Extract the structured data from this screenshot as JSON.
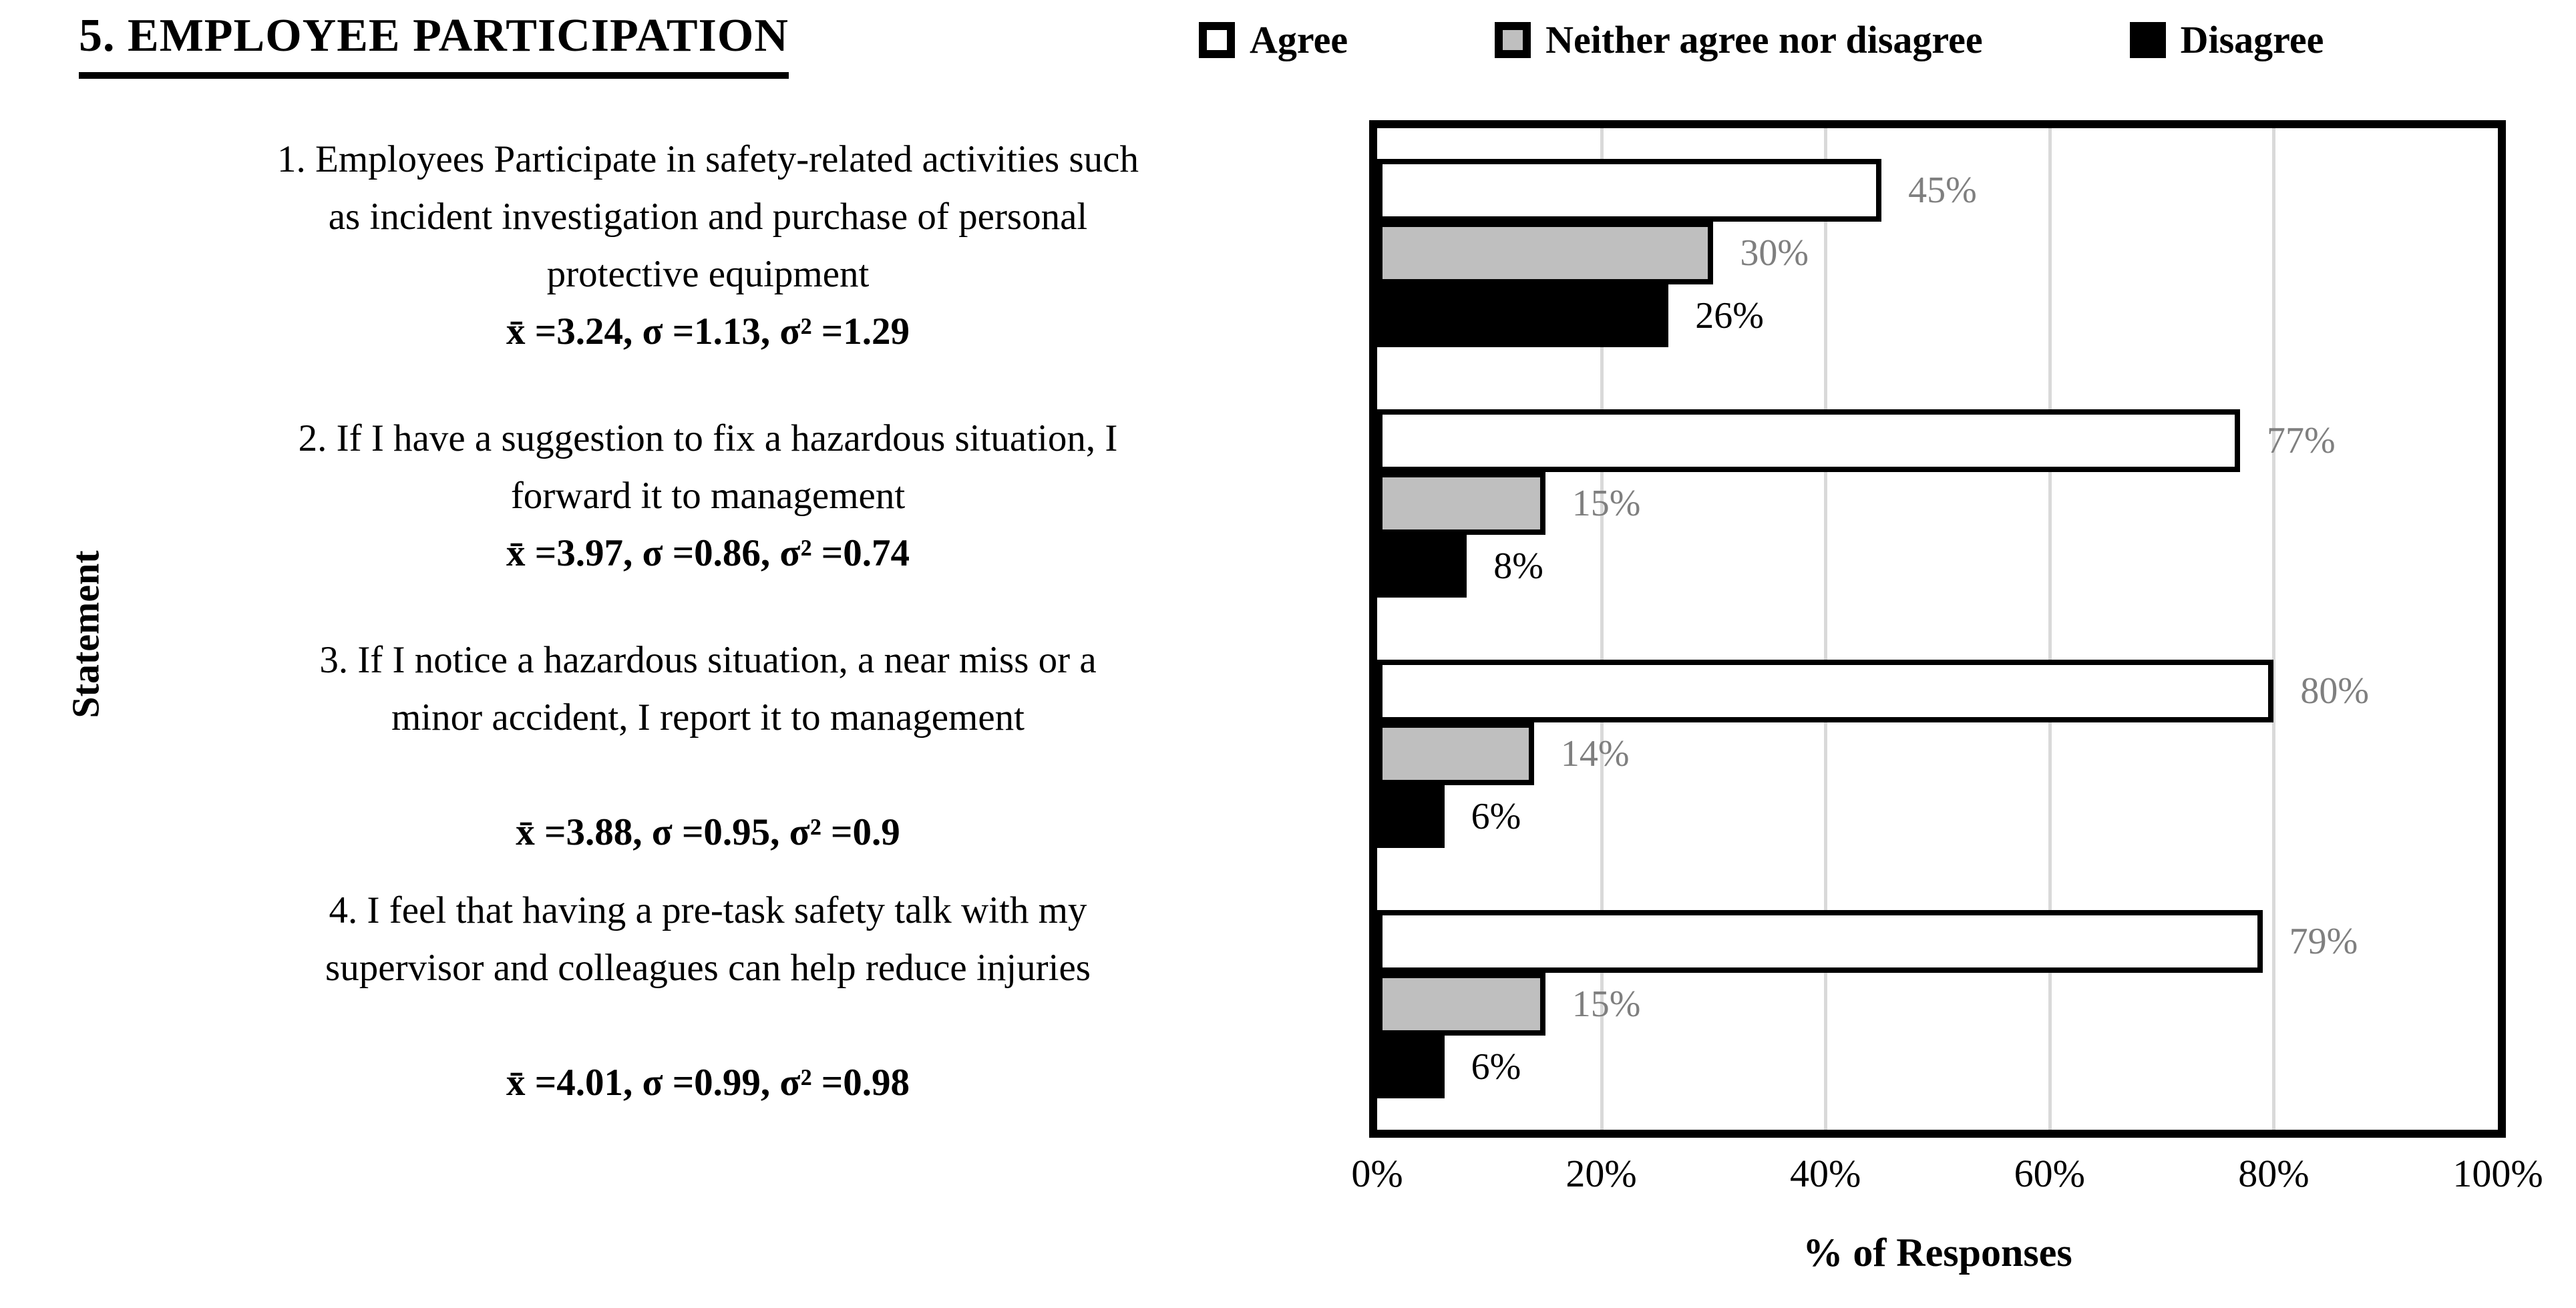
{
  "title": "5. EMPLOYEE PARTICIPATION",
  "legend": [
    {
      "label": "Agree",
      "color": "#FFFFFF"
    },
    {
      "label": "Neither agree nor disagree",
      "color": "#BFBFBF"
    },
    {
      "label": "Disagree",
      "color": "#000000"
    }
  ],
  "y_axis_title": "Statement",
  "x_axis_title": "% of Responses",
  "statements": [
    {
      "lines": [
        "1. Employees Participate in safety-related activities such",
        "as incident investigation and purchase of personal",
        "protective equipment"
      ],
      "stats": "x̄ =3.24, σ =1.13, σ² =1.29"
    },
    {
      "lines": [
        "2. If I have a suggestion to fix a hazardous situation, I",
        "forward it to management"
      ],
      "stats": "x̄ =3.97, σ =0.86, σ² =0.74"
    },
    {
      "lines": [
        "3. If I notice a hazardous situation, a near miss or a",
        "minor accident, I report it to management"
      ],
      "stats": "x̄ =3.88, σ =0.95, σ² =0.9"
    },
    {
      "lines": [
        "4. I feel that having a pre-task safety talk with my",
        "supervisor and colleagues can help reduce injuries"
      ],
      "stats": "x̄ =4.01, σ =0.99, σ² =0.98"
    }
  ],
  "chart_data": {
    "type": "bar",
    "orientation": "horizontal",
    "title": "5. EMPLOYEE PARTICIPATION",
    "xlabel": "% of Responses",
    "ylabel": "Statement",
    "xlim": [
      0,
      100
    ],
    "x_ticks": [
      "0%",
      "20%",
      "40%",
      "60%",
      "80%",
      "100%"
    ],
    "gridlines": [
      20,
      40,
      60,
      80,
      100
    ],
    "grid": "vertical",
    "legend_position": "top",
    "categories": [
      "1. Employees Participate in safety-related activities such as incident investigation and purchase of personal protective equipment",
      "2. If I have a suggestion to fix a hazardous situation, I forward it to management",
      "3. If I notice a hazardous situation, a near miss or a minor accident, I report it to management",
      "4. I feel that having a pre-task safety talk with my supervisor and colleagues can help reduce injuries"
    ],
    "series": [
      {
        "name": "Agree",
        "values": [
          45,
          77,
          80,
          79
        ],
        "fill": "#FFFFFF",
        "label_color": "#7F7F7F"
      },
      {
        "name": "Neither agree nor disagree",
        "values": [
          30,
          15,
          14,
          15
        ],
        "fill": "#BFBFBF",
        "label_color": "#7F7F7F"
      },
      {
        "name": "Disagree",
        "values": [
          26,
          8,
          6,
          6
        ],
        "fill": "#000000",
        "label_color": "#000000"
      }
    ],
    "data_label_format": "{value}%"
  }
}
